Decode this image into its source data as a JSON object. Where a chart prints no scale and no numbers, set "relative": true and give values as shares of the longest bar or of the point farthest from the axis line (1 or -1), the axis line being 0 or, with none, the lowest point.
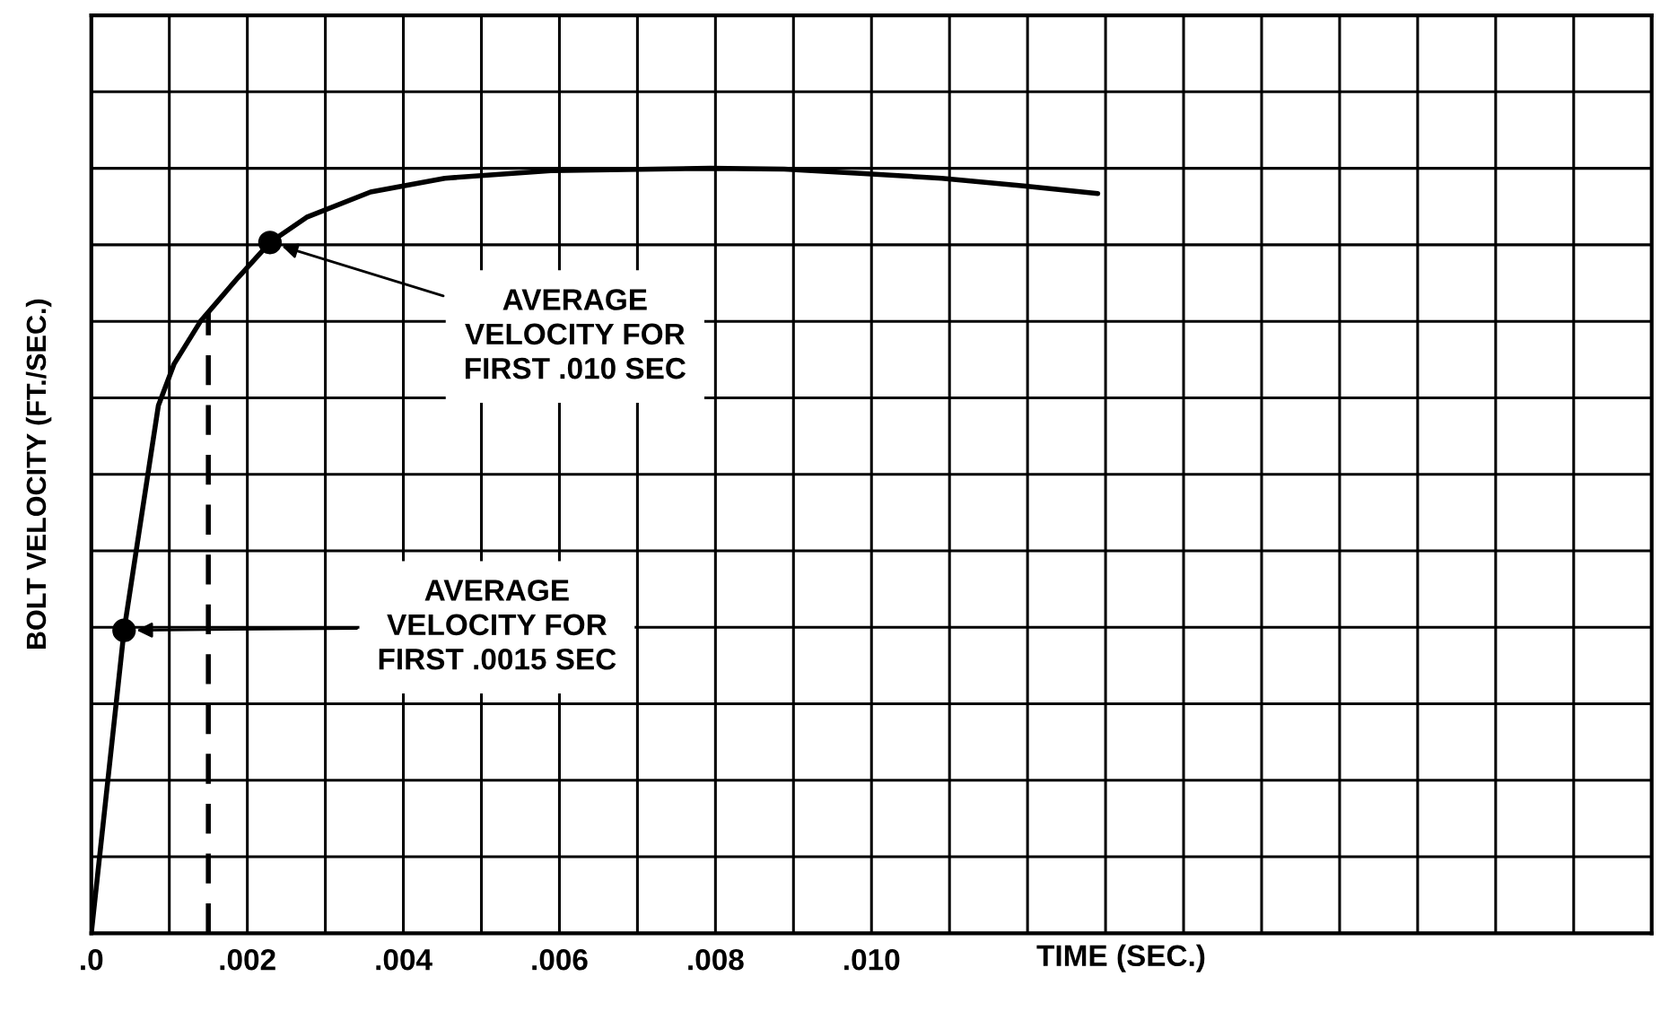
{
  "chart_data": {
    "type": "line",
    "relative": true,
    "ylabel": "BOLT VELOCITY (FT./SEC.)",
    "xlabel": "TIME (SEC.)",
    "xlim": [
      0,
      0.02
    ],
    "xticks": [
      {
        "value": 0,
        "label": ".0"
      },
      {
        "value": 0.001,
        "label": null
      },
      {
        "value": 0.002,
        "label": ".002"
      },
      {
        "value": 0.003,
        "label": null
      },
      {
        "value": 0.004,
        "label": ".004"
      },
      {
        "value": 0.005,
        "label": null
      },
      {
        "value": 0.006,
        "label": ".006"
      },
      {
        "value": 0.007,
        "label": null
      },
      {
        "value": 0.008,
        "label": ".008"
      },
      {
        "value": 0.009,
        "label": null
      },
      {
        "value": 0.01,
        "label": ".010"
      },
      {
        "value": 0.011,
        "label": null
      },
      {
        "value": 0.012,
        "label": null
      },
      {
        "value": 0.013,
        "label": null
      },
      {
        "value": 0.014,
        "label": null
      },
      {
        "value": 0.015,
        "label": null
      },
      {
        "value": 0.016,
        "label": null
      },
      {
        "value": 0.017,
        "label": null
      },
      {
        "value": 0.018,
        "label": null
      },
      {
        "value": 0.019,
        "label": null
      },
      {
        "value": 0.02,
        "label": null
      }
    ],
    "grid": true,
    "tick_labels": "x",
    "series": [
      {
        "color": "#000000",
        "marker": "none",
        "line_style": "solid",
        "x": [
          0,
          0.00042,
          0.00086,
          0.00106,
          0.0014,
          0.00188,
          0.00229,
          0.00276,
          0.00358,
          0.00453,
          0.00589,
          0.00793,
          0.00888,
          0.0099,
          0.0109,
          0.01195,
          0.0129
        ],
        "values": [
          0,
          0.396,
          0.69,
          0.744,
          0.8,
          0.857,
          0.903,
          0.936,
          0.969,
          0.987,
          0.997,
          1.0,
          0.999,
          0.993,
          0.987,
          0.977,
          0.967
        ]
      },
      {
        "type": "scatter",
        "color": "#000000",
        "marker": "circle",
        "x": [
          0.00042,
          0.00229
        ],
        "values": [
          0.396,
          0.903
        ]
      }
    ],
    "ref_lines": [
      {
        "axis": "x",
        "value": 0.0015,
        "color": "#000000",
        "line_style": "dashed"
      }
    ],
    "annotations": [
      "AVERAGE\nVELOCITY FOR\nFIRST .0015 SEC",
      "AVERAGE\nVELOCITY FOR\nFIRST .010 SEC"
    ]
  }
}
